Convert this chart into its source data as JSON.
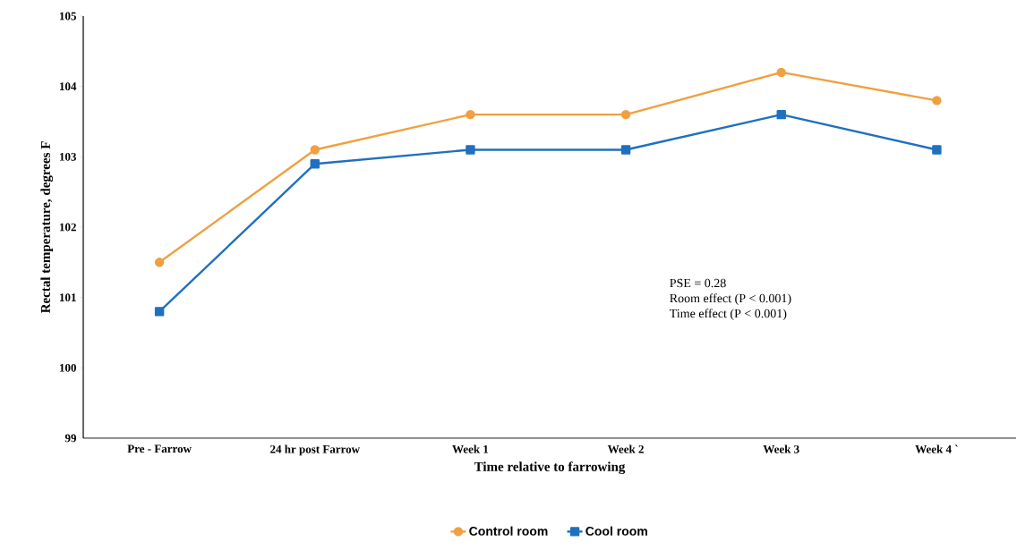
{
  "chart_data": {
    "type": "line",
    "xlabel": "Time relative to farrowing",
    "ylabel": "Rectal temperature, degrees F",
    "categories": [
      "Pre - Farrow",
      "24 hr post Farrow",
      "Week 1",
      "Week 2",
      "Week 3",
      "Week 4 `"
    ],
    "series": [
      {
        "name": "Control room",
        "color": "#f0a040",
        "marker": "circle",
        "values": [
          101.5,
          103.1,
          103.6,
          103.6,
          104.2,
          103.8
        ]
      },
      {
        "name": "Cool room",
        "color": "#1f70c0",
        "marker": "square",
        "values": [
          100.8,
          102.9,
          103.1,
          103.1,
          103.6,
          103.1
        ]
      }
    ],
    "ylim": [
      99,
      105
    ],
    "yticks": [
      99,
      100,
      101,
      102,
      103,
      104,
      105
    ],
    "annotations": [
      "PSE = 0.28",
      "Room effect (P < 0.001)",
      "Time effect (P < 0.001)"
    ],
    "legend": "bottom"
  }
}
